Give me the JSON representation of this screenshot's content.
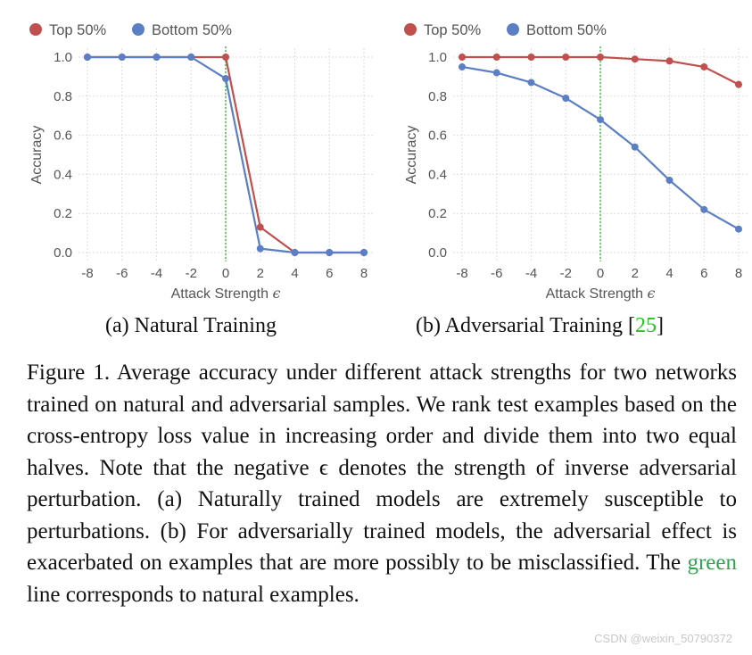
{
  "chart_data": [
    {
      "type": "line",
      "id": "a",
      "xlabel": "Attack Strength",
      "xlabel_symbol": "ϵ",
      "ylabel": "Accuracy",
      "x": [
        -8,
        -6,
        -4,
        -2,
        0,
        2,
        4,
        6,
        8
      ],
      "x_tick_labels": [
        "-8",
        "-6",
        "-4",
        "-2",
        "0",
        "2",
        "4",
        "6",
        "8"
      ],
      "ylim": [
        0.0,
        1.0
      ],
      "y_ticks": [
        0.0,
        0.2,
        0.4,
        0.6,
        0.8,
        1.0
      ],
      "y_tick_labels": [
        "0.0",
        "0.2",
        "0.4",
        "0.6",
        "0.8",
        "1.0"
      ],
      "grid": true,
      "legend_position": "top-left",
      "reference_line": {
        "x": 0,
        "color": "#2ca02c",
        "style": "dotted"
      },
      "series": [
        {
          "name": "Top 50%",
          "color": "#c0504d",
          "values": [
            1.0,
            1.0,
            1.0,
            1.0,
            1.0,
            0.13,
            0.0,
            0.0,
            0.0
          ]
        },
        {
          "name": "Bottom 50%",
          "color": "#5b7fc4",
          "values": [
            1.0,
            1.0,
            1.0,
            1.0,
            0.89,
            0.02,
            0.0,
            0.0,
            0.0
          ]
        }
      ]
    },
    {
      "type": "line",
      "id": "b",
      "xlabel": "Attack Strength",
      "xlabel_symbol": "ϵ",
      "ylabel": "Accuracy",
      "x": [
        -8,
        -6,
        -4,
        -2,
        0,
        2,
        4,
        6,
        8
      ],
      "x_tick_labels": [
        "-8",
        "-6",
        "-4",
        "-2",
        "0",
        "2",
        "4",
        "6",
        "8"
      ],
      "ylim": [
        0.0,
        1.0
      ],
      "y_ticks": [
        0.0,
        0.2,
        0.4,
        0.6,
        0.8,
        1.0
      ],
      "y_tick_labels": [
        "0.0",
        "0.2",
        "0.4",
        "0.6",
        "0.8",
        "1.0"
      ],
      "grid": true,
      "legend_position": "top-left",
      "reference_line": {
        "x": 0,
        "color": "#2ca02c",
        "style": "dotted"
      },
      "series": [
        {
          "name": "Top 50%",
          "color": "#c0504d",
          "values": [
            1.0,
            1.0,
            1.0,
            1.0,
            1.0,
            0.99,
            0.98,
            0.95,
            0.86
          ]
        },
        {
          "name": "Bottom 50%",
          "color": "#5b7fc4",
          "values": [
            0.95,
            0.92,
            0.87,
            0.79,
            0.68,
            0.54,
            0.37,
            0.22,
            0.12
          ]
        }
      ]
    }
  ],
  "subcaptions": {
    "a": "(a) Natural Training",
    "b_text": "(b) Adversarial Training [",
    "b_ref": "25",
    "b_close": "]"
  },
  "caption": {
    "part1": "Figure 1.  Average accuracy under different attack strengths for two networks trained on natural and adversarial samples. We rank test examples based on the cross-entropy loss value in increasing order and divide them into two equal halves. Note that the negative ϵ denotes the strength of inverse adversarial perturbation. (a) Naturally trained models are extremely susceptible to perturbations. (b) For adversarially trained models, the adversarial effect is exacerbated on examples that are more possibly to be misclassified. The ",
    "green_word": "green",
    "part2": " line corresponds to natural examples."
  },
  "watermark": "CSDN @weixin_50790372"
}
